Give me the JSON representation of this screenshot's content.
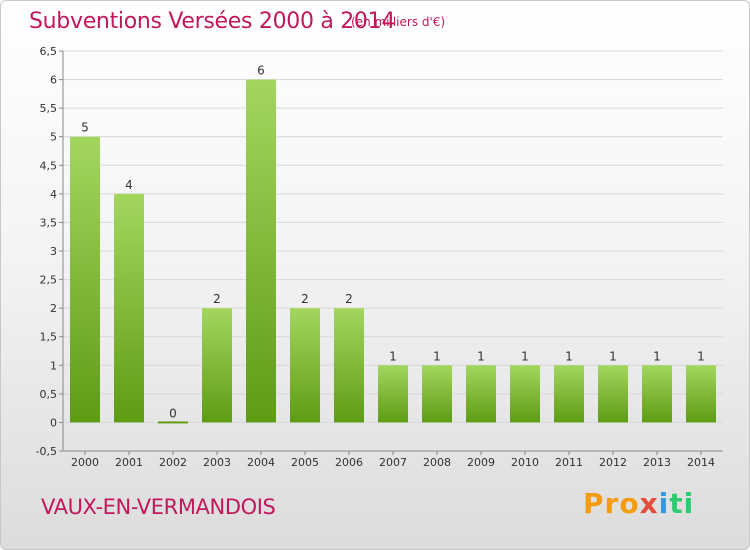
{
  "header": {
    "title": "Subventions Versées 2000 à 2014",
    "unit": "(en milliers d'€)"
  },
  "footer": {
    "commune": "VAUX-EN-VERMANDOIS",
    "logo": [
      "Pro",
      "x",
      "i",
      "ti"
    ]
  },
  "colors": {
    "title": "#c2185b",
    "bar_top": "#a4d65e",
    "bar_bottom": "#5e9c14",
    "grid": "#d8d8d8"
  },
  "chart_data": {
    "type": "bar",
    "categories": [
      "2000",
      "2001",
      "2002",
      "2003",
      "2004",
      "2005",
      "2006",
      "2007",
      "2008",
      "2009",
      "2010",
      "2011",
      "2012",
      "2013",
      "2014"
    ],
    "values": [
      5,
      4,
      0,
      2,
      6,
      2,
      2,
      1,
      1,
      1,
      1,
      1,
      1,
      1,
      1
    ],
    "data_labels": [
      "5",
      "4",
      "0",
      "2",
      "6",
      "2",
      "2",
      "1",
      "1",
      "1",
      "1",
      "1",
      "1",
      "1",
      "1"
    ],
    "title": "Subventions Versées 2000 à 2014",
    "xlabel": "",
    "ylabel": "",
    "ylim": [
      -0.5,
      6.5
    ],
    "yticks": [
      "-0,5",
      "0",
      "0,5",
      "1",
      "1,5",
      "2",
      "2,5",
      "3",
      "3,5",
      "4",
      "4,5",
      "5",
      "5,5",
      "6",
      "6,5"
    ],
    "grid": true,
    "legend": "none"
  }
}
